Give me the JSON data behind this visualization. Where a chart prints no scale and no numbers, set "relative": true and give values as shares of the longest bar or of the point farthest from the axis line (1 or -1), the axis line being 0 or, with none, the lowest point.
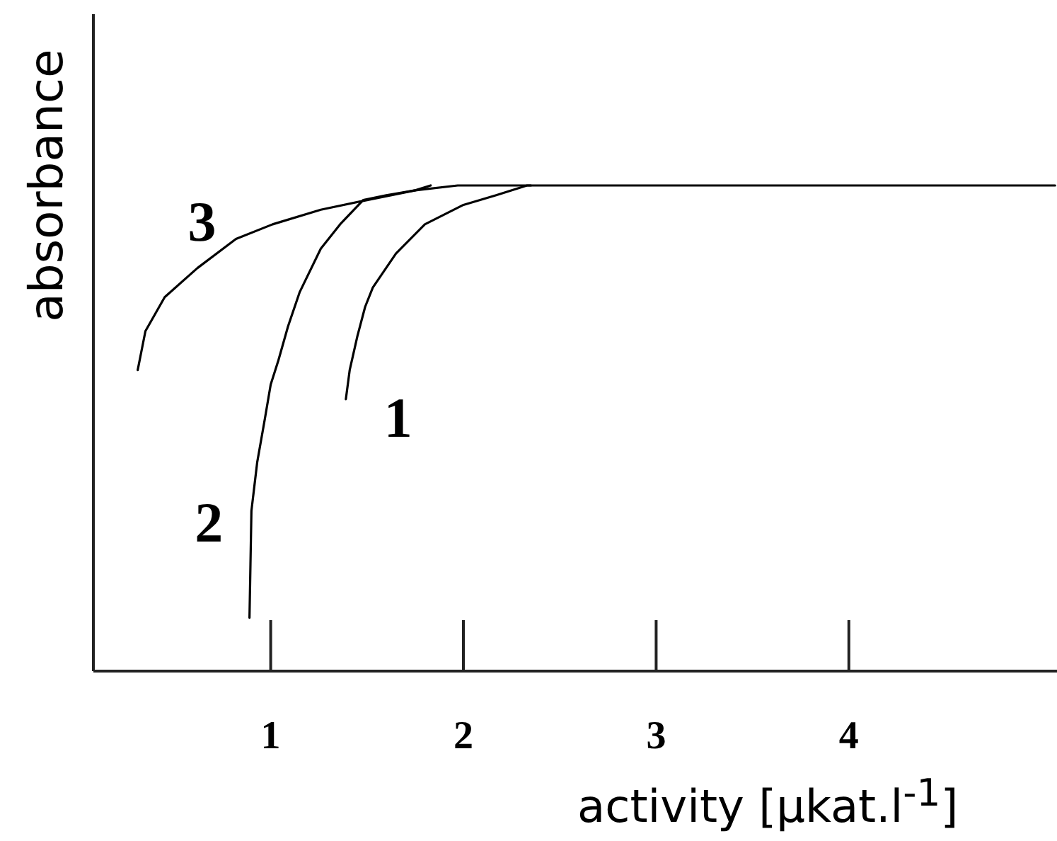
{
  "chart_data": {
    "type": "line",
    "relative": true,
    "xlabel": "activity [µkat.l$^{-1}$]",
    "ylabel": "absorbance",
    "xlim": [
      0.08,
      5.08
    ],
    "xticks": [
      1,
      2,
      3,
      4
    ],
    "series": [
      {
        "name": "1",
        "color": "#000000",
        "x": [
          1.39,
          1.41,
          1.45,
          1.49,
          1.53,
          1.65,
          1.8,
          2.0,
          2.17,
          2.33,
          5.07
        ],
        "values": [
          0.56,
          0.62,
          0.69,
          0.75,
          0.79,
          0.86,
          0.92,
          0.96,
          0.98,
          1,
          1
        ]
      },
      {
        "name": "2",
        "color": "#000000",
        "x": [
          0.89,
          0.895,
          0.9,
          0.93,
          0.97,
          1.0,
          1.04,
          1.09,
          1.15,
          1.26,
          1.36,
          1.48,
          1.6,
          1.75,
          1.83
        ],
        "values": [
          0.11,
          0.22,
          0.33,
          0.43,
          0.52,
          0.59,
          0.64,
          0.71,
          0.78,
          0.87,
          0.92,
          0.97,
          0.98,
          0.99,
          1
        ]
      },
      {
        "name": "3",
        "color": "#000000",
        "x": [
          0.31,
          0.35,
          0.45,
          0.62,
          0.82,
          1.01,
          1.26,
          1.5,
          1.75,
          1.97,
          2.35
        ],
        "values": [
          0.62,
          0.7,
          0.77,
          0.83,
          0.89,
          0.92,
          0.95,
          0.97,
          0.99,
          1,
          1
        ]
      }
    ]
  }
}
